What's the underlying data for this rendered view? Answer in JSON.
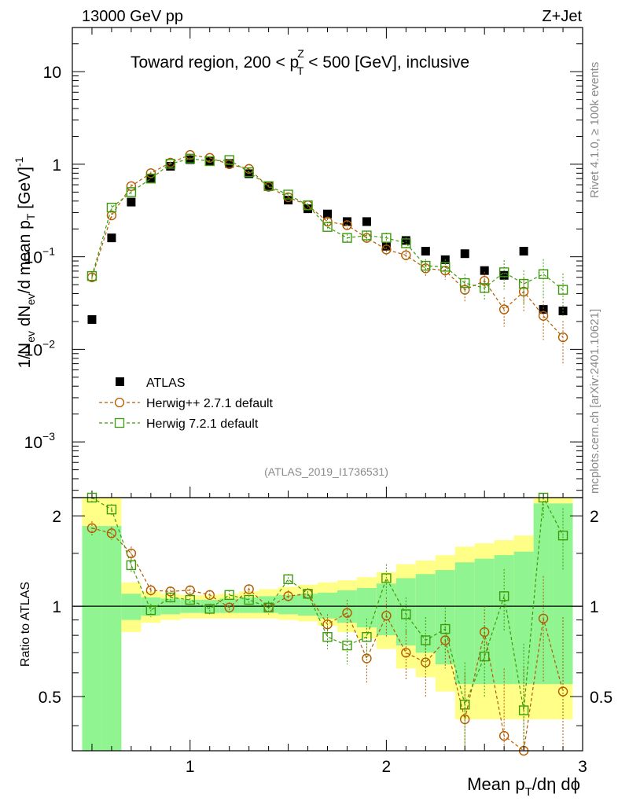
{
  "chart_data": {
    "type": "scatter",
    "header": {
      "left": "13000 GeV pp",
      "right": "Z+Jet"
    },
    "title": "Toward region, 200 < p",
    "title_sup": "Z",
    "title_sub": "T",
    "title_rest": " < 500 [GeV], inclusive",
    "ylabel": "1/N",
    "ylabel_parts": {
      "ev_sub": "ev",
      "mid": " dN",
      "ev2_sub": "ev",
      "tail": "/d mean p",
      "t_sub": "T",
      "unit": " [GeV]",
      "unit_sup": "-1"
    },
    "ratio_ylabel": "Ratio to ATLAS",
    "xlabel": "Mean p",
    "xlabel_sub": "T",
    "xlabel_tail": "/dη dϕ",
    "side_label_1": "Rivet 4.1.0, ≥ 100k events",
    "side_label_2": "mcplots.cern.ch [arXiv:2401.10621]",
    "analysis_id": "(ATLAS_2019_I1736531)",
    "xlim": [
      0.4,
      3.0
    ],
    "ylim": [
      0.00025,
      30
    ],
    "ratio_ylim": [
      0.33,
      2.3
    ],
    "x_ticks": [
      {
        "value": 1,
        "label": "1"
      },
      {
        "value": 2,
        "label": "2"
      },
      {
        "value": 3,
        "label": "3"
      }
    ],
    "y_ticks": [
      {
        "value": 0.001,
        "base": "10",
        "exp": "−3"
      },
      {
        "value": 0.01,
        "base": "10",
        "exp": "−2"
      },
      {
        "value": 0.1,
        "base": "10",
        "exp": "−1"
      },
      {
        "value": 1,
        "base": "1",
        "exp": ""
      },
      {
        "value": 10,
        "base": "10",
        "exp": ""
      }
    ],
    "ratio_ticks": [
      {
        "value": 0.5,
        "label": "0.5"
      },
      {
        "value": 1,
        "label": "1"
      },
      {
        "value": 2,
        "label": "2"
      }
    ],
    "x": [
      0.5,
      0.6,
      0.7,
      0.8,
      0.9,
      1.0,
      1.1,
      1.2,
      1.3,
      1.4,
      1.5,
      1.6,
      1.7,
      1.8,
      1.9,
      2.0,
      2.1,
      2.2,
      2.3,
      2.4,
      2.5,
      2.6,
      2.7,
      2.8,
      2.9
    ],
    "bands": {
      "edges": [
        0.45,
        0.55,
        0.65,
        0.75,
        0.85,
        0.95,
        1.05,
        1.15,
        1.25,
        1.35,
        1.45,
        1.55,
        1.65,
        1.75,
        1.85,
        1.95,
        2.05,
        2.15,
        2.25,
        2.35,
        2.45,
        2.55,
        2.65,
        2.75,
        2.85,
        2.95
      ],
      "yellow_lo": [
        0.2,
        0.2,
        0.82,
        0.88,
        0.9,
        0.91,
        0.91,
        0.91,
        0.91,
        0.91,
        0.9,
        0.89,
        0.86,
        0.82,
        0.78,
        0.72,
        0.62,
        0.58,
        0.52,
        0.42,
        0.42,
        0.42,
        0.42,
        0.42,
        0.42
      ],
      "yellow_hi": [
        2.4,
        2.4,
        1.2,
        1.12,
        1.1,
        1.09,
        1.09,
        1.1,
        1.12,
        1.14,
        1.16,
        1.18,
        1.2,
        1.22,
        1.25,
        1.3,
        1.38,
        1.42,
        1.48,
        1.58,
        1.62,
        1.66,
        1.72,
        2.4,
        2.4
      ],
      "green_lo": [
        0.2,
        0.2,
        0.9,
        0.93,
        0.94,
        0.95,
        0.95,
        0.95,
        0.95,
        0.95,
        0.94,
        0.93,
        0.91,
        0.88,
        0.85,
        0.8,
        0.74,
        0.7,
        0.64,
        0.55,
        0.55,
        0.55,
        0.55,
        0.55,
        0.55
      ],
      "green_hi": [
        1.85,
        1.85,
        1.1,
        1.07,
        1.06,
        1.05,
        1.05,
        1.06,
        1.07,
        1.08,
        1.09,
        1.1,
        1.11,
        1.13,
        1.15,
        1.19,
        1.24,
        1.28,
        1.32,
        1.4,
        1.44,
        1.48,
        1.52,
        2.2,
        2.2
      ]
    },
    "series": [
      {
        "name": "ATLAS",
        "legend": "ATLAS",
        "color": "#000000",
        "marker": "filled-square",
        "values": [
          0.021,
          0.16,
          0.39,
          0.71,
          0.95,
          1.12,
          1.08,
          1.02,
          0.79,
          0.58,
          0.41,
          0.33,
          0.29,
          0.24,
          0.24,
          0.13,
          0.15,
          0.115,
          0.093,
          0.108,
          0.071,
          0.063,
          0.115,
          0.027,
          0.026
        ]
      },
      {
        "name": "Herwig++",
        "legend": "Herwig++ 2.7.1 default",
        "color": "#b35a00",
        "marker": "open-circle",
        "values": [
          0.06,
          0.28,
          0.58,
          0.8,
          1.04,
          1.26,
          1.17,
          1.0,
          0.89,
          0.57,
          0.44,
          0.36,
          0.24,
          0.22,
          0.16,
          0.12,
          0.104,
          0.075,
          0.071,
          0.044,
          0.055,
          0.027,
          0.042,
          0.023,
          0.0135
        ],
        "errors": [
          0.1,
          0.06,
          0.05,
          0.04,
          0.03,
          0.03,
          0.03,
          0.03,
          0.03,
          0.04,
          0.05,
          0.05,
          0.08,
          0.1,
          0.12,
          0.14,
          0.16,
          0.18,
          0.2,
          0.25,
          0.25,
          0.35,
          0.4,
          0.45,
          0.5
        ],
        "ratio": [
          1.82,
          1.75,
          1.5,
          1.13,
          1.12,
          1.13,
          1.09,
          0.99,
          1.14,
          0.99,
          1.08,
          1.1,
          0.87,
          0.95,
          0.67,
          0.93,
          0.7,
          0.65,
          0.77,
          0.42,
          0.82,
          0.37,
          0.33,
          0.91,
          0.52
        ],
        "ratio_err": [
          0.1,
          0.09,
          0.08,
          0.05,
          0.04,
          0.04,
          0.04,
          0.04,
          0.04,
          0.05,
          0.05,
          0.05,
          0.07,
          0.1,
          0.12,
          0.14,
          0.13,
          0.15,
          0.15,
          0.18,
          0.18,
          0.25,
          0.3,
          0.35,
          0.4
        ]
      },
      {
        "name": "Herwig 7.2.1",
        "legend": "Herwig 7.2.1 default",
        "color": "#3c9b0c",
        "marker": "open-square",
        "values": [
          0.062,
          0.34,
          0.5,
          0.7,
          1.01,
          1.15,
          1.08,
          1.11,
          0.82,
          0.58,
          0.47,
          0.36,
          0.21,
          0.16,
          0.17,
          0.16,
          0.14,
          0.08,
          0.078,
          0.052,
          0.046,
          0.068,
          0.051,
          0.065,
          0.044
        ],
        "errors": [
          0.12,
          0.06,
          0.05,
          0.04,
          0.03,
          0.03,
          0.03,
          0.03,
          0.03,
          0.04,
          0.05,
          0.05,
          0.08,
          0.1,
          0.12,
          0.14,
          0.16,
          0.18,
          0.2,
          0.25,
          0.25,
          0.35,
          0.4,
          0.45,
          0.5
        ],
        "ratio": [
          2.3,
          2.1,
          1.37,
          0.97,
          1.07,
          1.05,
          0.98,
          1.09,
          1.05,
          0.99,
          1.23,
          1.1,
          0.79,
          0.74,
          0.79,
          1.24,
          0.94,
          0.77,
          0.84,
          0.47,
          0.68,
          1.08,
          0.45,
          2.3,
          1.72
        ],
        "ratio_err": [
          0.1,
          0.09,
          0.08,
          0.05,
          0.04,
          0.04,
          0.04,
          0.04,
          0.04,
          0.05,
          0.05,
          0.05,
          0.07,
          0.1,
          0.12,
          0.14,
          0.13,
          0.15,
          0.15,
          0.18,
          0.18,
          0.25,
          0.3,
          0.35,
          0.4
        ]
      }
    ]
  }
}
